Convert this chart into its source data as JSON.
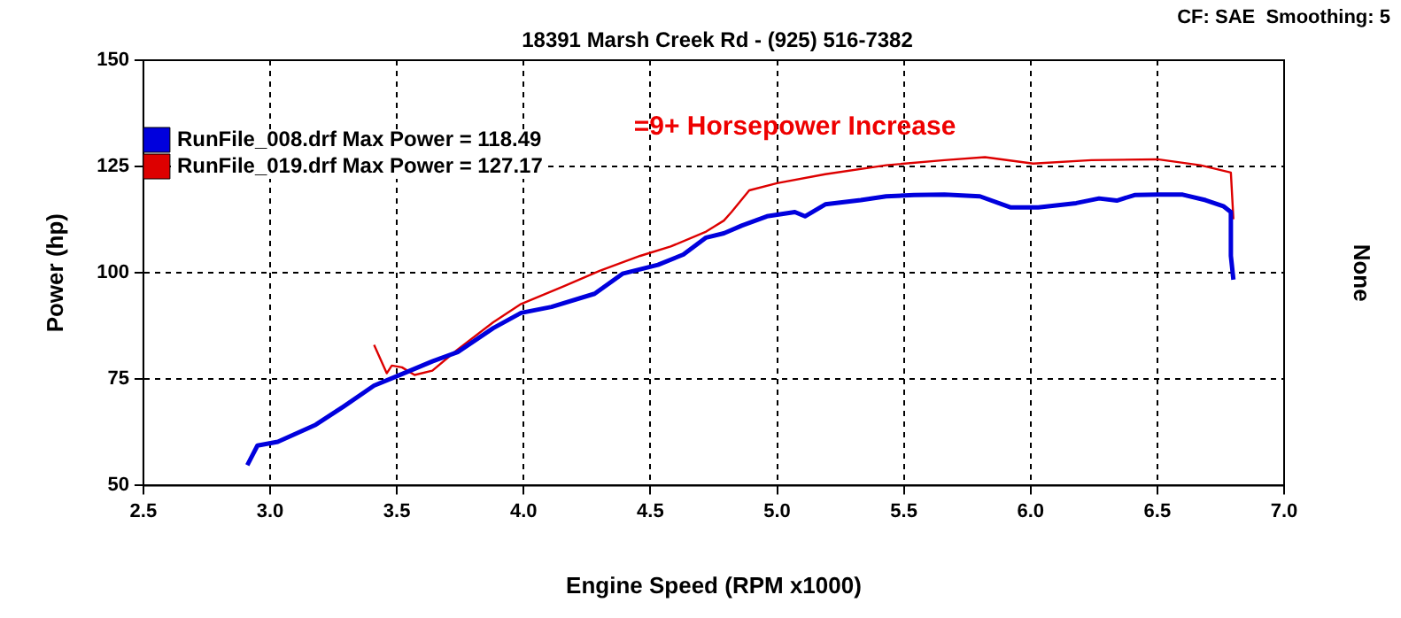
{
  "chart_data": {
    "type": "line",
    "subtitle": "18391 Marsh Creek Rd - (925) 516-7382",
    "xlabel": "Engine Speed (RPM x1000)",
    "ylabel": "Power (hp)",
    "y2label": "None",
    "annotations": [
      "CF: SAE  Smoothing: 5",
      "=9+ Horsepower Increase"
    ],
    "xlim": [
      2.5,
      7.0
    ],
    "xticks": [
      2.5,
      {
        "value": 3,
        "label": "3.0"
      },
      3.5,
      {
        "value": 4,
        "label": "4.0"
      },
      4.5,
      {
        "value": 5,
        "label": "5.0"
      },
      5.5,
      {
        "value": 6,
        "label": "6.0"
      },
      6.5,
      {
        "value": 7,
        "label": "7.0"
      }
    ],
    "ylim": [
      50,
      150
    ],
    "yticks": [
      50,
      75,
      100,
      125,
      150
    ],
    "grid": true,
    "legend": "top left",
    "marker": "none",
    "line_style": "solid",
    "series": [
      {
        "name": "RunFile_008.drf Max Power = 118.49",
        "color": "#0000dd",
        "x": [
          2.91,
          2.95,
          3.03,
          3.18,
          3.29,
          3.41,
          3.5,
          3.64,
          3.74,
          3.88,
          3.99,
          4.11,
          4.28,
          4.39,
          4.53,
          4.63,
          4.72,
          4.79,
          4.86,
          4.96,
          5.07,
          5.11,
          5.19,
          5.33,
          5.43,
          5.54,
          5.66,
          5.8,
          5.92,
          6.03,
          6.18,
          6.27,
          6.34,
          6.41,
          6.5,
          6.6,
          6.69,
          6.76,
          6.79,
          6.79,
          6.8
        ],
        "values": [
          54.8,
          59.4,
          60.3,
          64.3,
          68.6,
          73.5,
          75.7,
          79.2,
          81.4,
          87,
          90.6,
          92,
          95.1,
          99.8,
          101.9,
          104.3,
          108.3,
          109.3,
          111.1,
          113.3,
          114.3,
          113.3,
          116.1,
          117.1,
          118,
          118.3,
          118.4,
          118,
          115.4,
          115.4,
          116.4,
          117.5,
          117,
          118.3,
          118.4,
          118.4,
          117.1,
          115.7,
          114.3,
          104,
          98.4
        ]
      },
      {
        "name": "RunFile_019.drf Max Power = 127.17",
        "color": "#dd0000",
        "x": [
          3.41,
          3.46,
          3.48,
          3.52,
          3.57,
          3.64,
          3.74,
          3.88,
          3.99,
          4.16,
          4.3,
          4.46,
          4.58,
          4.72,
          4.79,
          4.82,
          4.89,
          5.0,
          5.19,
          5.43,
          5.66,
          5.82,
          6.01,
          6.24,
          6.5,
          6.67,
          6.79,
          6.8
        ],
        "values": [
          83.1,
          76.4,
          78.2,
          77.8,
          76,
          77,
          82,
          88.4,
          92.7,
          96.9,
          100.5,
          104,
          106.2,
          109.7,
          112.3,
          114.3,
          119.4,
          121.1,
          123.2,
          125.3,
          126.5,
          127.2,
          125.7,
          126.5,
          126.7,
          125.3,
          123.6,
          112.6
        ]
      }
    ]
  }
}
